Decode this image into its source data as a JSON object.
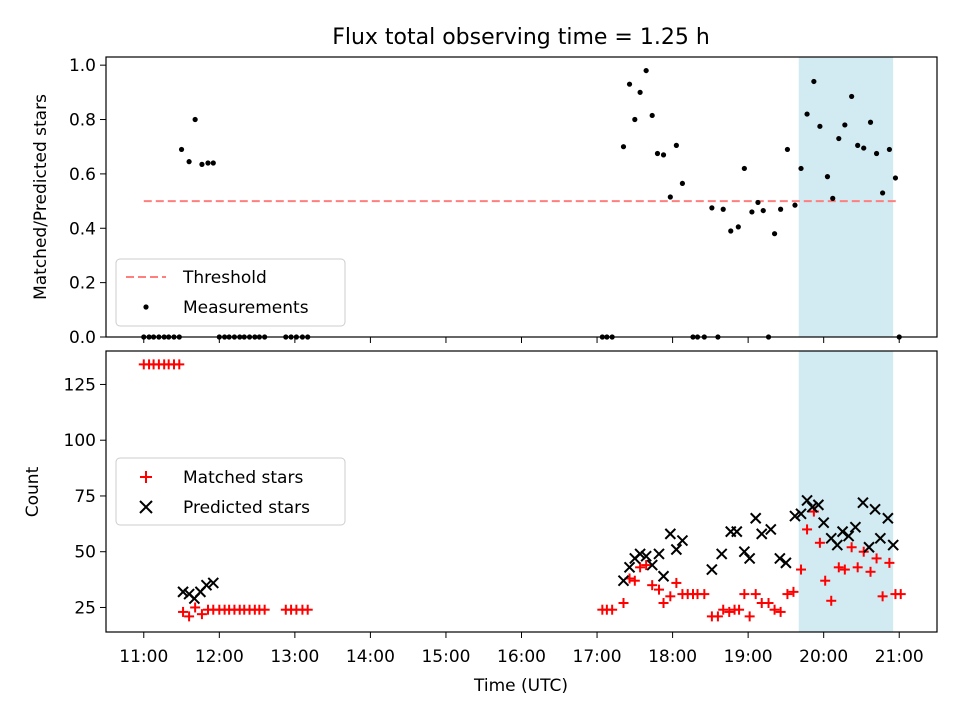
{
  "figure": {
    "title": "Flux total observing time = 1.25 h",
    "xlabel": "Time (UTC)",
    "x_tick_labels": [
      "11:00",
      "12:00",
      "13:00",
      "14:00",
      "15:00",
      "16:00",
      "17:00",
      "18:00",
      "19:00",
      "20:00",
      "21:00"
    ],
    "highlight_color": "#add8e6"
  },
  "chart_data": [
    {
      "type": "scatter",
      "ylabel": "Matched/Predicted stars",
      "x_unit": "hours UTC",
      "xlim": [
        10.5,
        21.5
      ],
      "ylim": [
        0,
        1.03
      ],
      "y_ticks": [
        0.0,
        0.2,
        0.4,
        0.6,
        0.8,
        1.0
      ],
      "y_tick_labels": [
        "0.0",
        "0.2",
        "0.4",
        "0.6",
        "0.8",
        "1.0"
      ],
      "highlight_span": [
        19.67,
        20.92
      ],
      "grid": false,
      "legend_position": "lower-left",
      "threshold": {
        "name": "Threshold",
        "value": 0.5,
        "x_range": [
          11.0,
          21.0
        ],
        "color": "#ff7f7f"
      },
      "series": [
        {
          "name": "Measurements",
          "color": "#000000",
          "points": [
            [
              11.0,
              0
            ],
            [
              11.07,
              0
            ],
            [
              11.13,
              0
            ],
            [
              11.2,
              0
            ],
            [
              11.27,
              0
            ],
            [
              11.33,
              0
            ],
            [
              11.4,
              0
            ],
            [
              11.47,
              0
            ],
            [
              11.5,
              0.69
            ],
            [
              11.6,
              0.645
            ],
            [
              11.68,
              0.8
            ],
            [
              11.77,
              0.635
            ],
            [
              11.85,
              0.64
            ],
            [
              11.92,
              0.64
            ],
            [
              12.0,
              0
            ],
            [
              12.07,
              0
            ],
            [
              12.13,
              0
            ],
            [
              12.2,
              0
            ],
            [
              12.27,
              0
            ],
            [
              12.33,
              0
            ],
            [
              12.4,
              0
            ],
            [
              12.47,
              0
            ],
            [
              12.53,
              0
            ],
            [
              12.6,
              0
            ],
            [
              12.88,
              0
            ],
            [
              12.95,
              0
            ],
            [
              13.02,
              0
            ],
            [
              13.1,
              0
            ],
            [
              13.17,
              0
            ],
            [
              17.07,
              0
            ],
            [
              17.13,
              0
            ],
            [
              17.2,
              0
            ],
            [
              17.35,
              0.7
            ],
            [
              17.43,
              0.93
            ],
            [
              17.5,
              0.8
            ],
            [
              17.57,
              0.9
            ],
            [
              17.65,
              0.98
            ],
            [
              17.73,
              0.815
            ],
            [
              17.8,
              0.675
            ],
            [
              17.88,
              0.67
            ],
            [
              17.97,
              0.515
            ],
            [
              18.05,
              0.705
            ],
            [
              18.13,
              0.565
            ],
            [
              18.27,
              0
            ],
            [
              18.33,
              0
            ],
            [
              18.42,
              0
            ],
            [
              18.52,
              0.475
            ],
            [
              18.67,
              0.47
            ],
            [
              18.77,
              0.39
            ],
            [
              18.87,
              0.405
            ],
            [
              18.95,
              0.62
            ],
            [
              19.05,
              0.46
            ],
            [
              19.13,
              0.495
            ],
            [
              19.2,
              0.465
            ],
            [
              19.35,
              0.38
            ],
            [
              19.43,
              0.47
            ],
            [
              19.52,
              0.69
            ],
            [
              19.62,
              0.485
            ],
            [
              19.7,
              0.62
            ],
            [
              19.78,
              0.82
            ],
            [
              19.87,
              0.94
            ],
            [
              19.95,
              0.775
            ],
            [
              20.05,
              0.59
            ],
            [
              20.12,
              0.51
            ],
            [
              20.2,
              0.73
            ],
            [
              20.28,
              0.78
            ],
            [
              20.37,
              0.885
            ],
            [
              20.45,
              0.705
            ],
            [
              20.53,
              0.695
            ],
            [
              20.62,
              0.79
            ],
            [
              20.7,
              0.675
            ],
            [
              20.78,
              0.53
            ],
            [
              20.87,
              0.69
            ],
            [
              20.95,
              0.585
            ],
            [
              18.6,
              0
            ],
            [
              19.27,
              0
            ],
            [
              21.0,
              0
            ]
          ]
        }
      ]
    },
    {
      "type": "scatter",
      "ylabel": "Count",
      "x_unit": "hours UTC",
      "xlim": [
        10.5,
        21.5
      ],
      "ylim": [
        14,
        140
      ],
      "y_ticks": [
        25,
        50,
        75,
        100,
        125
      ],
      "y_tick_labels": [
        "25",
        "50",
        "75",
        "100",
        "125"
      ],
      "highlight_span": [
        19.67,
        20.92
      ],
      "grid": false,
      "legend_position": "center-left",
      "series": [
        {
          "name": "Matched stars",
          "marker": "plus",
          "color": "#ff0000",
          "points": [
            [
              11.0,
              134
            ],
            [
              11.07,
              134
            ],
            [
              11.13,
              134
            ],
            [
              11.2,
              134
            ],
            [
              11.27,
              134
            ],
            [
              11.33,
              134
            ],
            [
              11.4,
              134
            ],
            [
              11.47,
              134
            ],
            [
              11.52,
              23
            ],
            [
              11.6,
              21
            ],
            [
              11.68,
              25
            ],
            [
              11.77,
              22
            ],
            [
              11.85,
              24
            ],
            [
              11.92,
              24
            ],
            [
              12.0,
              24
            ],
            [
              12.07,
              24
            ],
            [
              12.13,
              24
            ],
            [
              12.2,
              24
            ],
            [
              12.27,
              24
            ],
            [
              12.33,
              24
            ],
            [
              12.4,
              24
            ],
            [
              12.47,
              24
            ],
            [
              12.53,
              24
            ],
            [
              12.6,
              24
            ],
            [
              12.88,
              24
            ],
            [
              12.95,
              24
            ],
            [
              13.02,
              24
            ],
            [
              13.1,
              24
            ],
            [
              13.17,
              24
            ],
            [
              17.07,
              24
            ],
            [
              17.13,
              24
            ],
            [
              17.2,
              24
            ],
            [
              17.35,
              27
            ],
            [
              17.43,
              38
            ],
            [
              17.5,
              37
            ],
            [
              17.57,
              43
            ],
            [
              17.65,
              44
            ],
            [
              17.73,
              35
            ],
            [
              17.82,
              33
            ],
            [
              17.88,
              27
            ],
            [
              17.97,
              30
            ],
            [
              18.05,
              36
            ],
            [
              18.13,
              31
            ],
            [
              18.2,
              31
            ],
            [
              18.27,
              31
            ],
            [
              18.33,
              31
            ],
            [
              18.42,
              31
            ],
            [
              18.52,
              21
            ],
            [
              18.6,
              21
            ],
            [
              18.67,
              24
            ],
            [
              18.75,
              23
            ],
            [
              18.82,
              24
            ],
            [
              18.88,
              24
            ],
            [
              18.95,
              31
            ],
            [
              19.02,
              21
            ],
            [
              19.1,
              31
            ],
            [
              19.18,
              27
            ],
            [
              19.27,
              27
            ],
            [
              19.35,
              24
            ],
            [
              19.43,
              23
            ],
            [
              19.52,
              31
            ],
            [
              19.6,
              32
            ],
            [
              19.7,
              42
            ],
            [
              19.78,
              60
            ],
            [
              19.87,
              68
            ],
            [
              19.95,
              54
            ],
            [
              20.02,
              37
            ],
            [
              20.1,
              28
            ],
            [
              20.2,
              43
            ],
            [
              20.28,
              42
            ],
            [
              20.37,
              52
            ],
            [
              20.45,
              43
            ],
            [
              20.53,
              50
            ],
            [
              20.62,
              41
            ],
            [
              20.7,
              47
            ],
            [
              20.78,
              30
            ],
            [
              20.87,
              45
            ],
            [
              20.95,
              31
            ],
            [
              21.02,
              31
            ]
          ]
        },
        {
          "name": "Predicted stars",
          "marker": "cross",
          "color": "#000000",
          "points": [
            [
              11.52,
              32
            ],
            [
              11.6,
              31
            ],
            [
              11.67,
              29
            ],
            [
              11.75,
              32
            ],
            [
              11.83,
              35
            ],
            [
              11.92,
              36
            ],
            [
              17.35,
              37
            ],
            [
              17.43,
              43
            ],
            [
              17.5,
              47
            ],
            [
              17.57,
              49
            ],
            [
              17.65,
              48
            ],
            [
              17.73,
              44
            ],
            [
              17.82,
              49
            ],
            [
              17.88,
              39
            ],
            [
              17.97,
              58
            ],
            [
              18.05,
              51
            ],
            [
              18.13,
              55
            ],
            [
              18.52,
              42
            ],
            [
              18.65,
              49
            ],
            [
              18.77,
              59
            ],
            [
              18.85,
              59
            ],
            [
              18.95,
              50
            ],
            [
              19.02,
              47
            ],
            [
              19.1,
              65
            ],
            [
              19.18,
              58
            ],
            [
              19.3,
              60
            ],
            [
              19.42,
              47
            ],
            [
              19.5,
              45
            ],
            [
              19.62,
              66
            ],
            [
              19.7,
              67
            ],
            [
              19.78,
              73
            ],
            [
              19.85,
              70
            ],
            [
              19.93,
              71
            ],
            [
              20.0,
              63
            ],
            [
              20.1,
              56
            ],
            [
              20.18,
              53
            ],
            [
              20.25,
              59
            ],
            [
              20.33,
              57
            ],
            [
              20.42,
              61
            ],
            [
              20.52,
              72
            ],
            [
              20.6,
              52
            ],
            [
              20.68,
              69
            ],
            [
              20.75,
              56
            ],
            [
              20.85,
              65
            ],
            [
              20.92,
              53
            ]
          ]
        }
      ]
    }
  ]
}
